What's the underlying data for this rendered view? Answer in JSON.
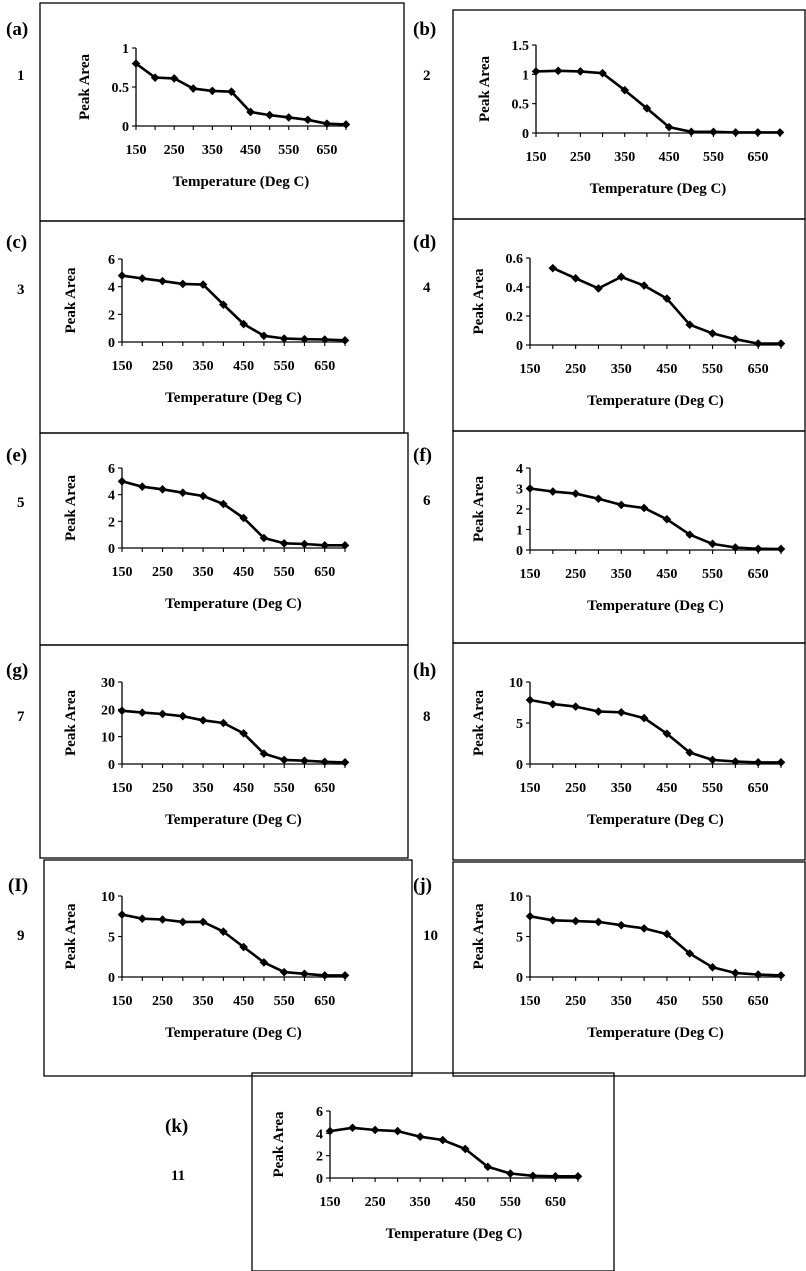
{
  "chart_data": [
    {
      "type": "line",
      "panel_label": "(a)",
      "panel_number": "1",
      "ylabel": "Peak Area",
      "xlabel": "Temperature (Deg C)",
      "x": [
        150,
        200,
        250,
        300,
        350,
        400,
        450,
        500,
        550,
        600,
        650,
        700
      ],
      "values": [
        0.8,
        0.62,
        0.61,
        0.48,
        0.45,
        0.44,
        0.18,
        0.14,
        0.11,
        0.08,
        0.03,
        0.02
      ],
      "ylim": [
        0,
        1
      ],
      "yticks": [
        "0",
        "0.5",
        "1"
      ],
      "yticks_values": [
        0,
        0.5,
        1
      ],
      "xticks": [
        "150",
        "250",
        "350",
        "450",
        "550",
        "650"
      ]
    },
    {
      "type": "line",
      "panel_label": "(b)",
      "panel_number": "2",
      "ylabel": "Peak Area",
      "xlabel": "Temperature (Deg C)",
      "x": [
        150,
        200,
        250,
        300,
        350,
        400,
        450,
        500,
        550,
        600,
        650,
        700
      ],
      "values": [
        1.05,
        1.06,
        1.05,
        1.02,
        0.73,
        0.42,
        0.1,
        0.02,
        0.02,
        0.01,
        0.01,
        0.01
      ],
      "ylim": [
        0,
        1.5
      ],
      "yticks": [
        "0",
        "0.5",
        "1",
        "1.5"
      ],
      "yticks_values": [
        0,
        0.5,
        1,
        1.5
      ],
      "xticks": [
        "150",
        "250",
        "350",
        "450",
        "550",
        "650"
      ]
    },
    {
      "type": "line",
      "panel_label": "(c)",
      "panel_number": "3",
      "ylabel": "Peak Area",
      "xlabel": "Temperature (Deg C)",
      "x": [
        150,
        200,
        250,
        300,
        350,
        400,
        450,
        500,
        550,
        600,
        650,
        700
      ],
      "values": [
        4.8,
        4.6,
        4.4,
        4.2,
        4.15,
        2.7,
        1.3,
        0.45,
        0.25,
        0.2,
        0.18,
        0.12
      ],
      "ylim": [
        0,
        6
      ],
      "yticks": [
        "0",
        "2",
        "4",
        "6"
      ],
      "yticks_values": [
        0,
        2,
        4,
        6
      ],
      "xticks": [
        "150",
        "250",
        "350",
        "450",
        "550",
        "650"
      ]
    },
    {
      "type": "line",
      "panel_label": "(d)",
      "panel_number": "4",
      "ylabel": "Peak Area",
      "xlabel": "Temperature (Deg C)",
      "x": [
        200,
        250,
        300,
        350,
        400,
        450,
        500,
        550,
        600,
        650,
        700
      ],
      "values": [
        0.53,
        0.46,
        0.39,
        0.47,
        0.41,
        0.32,
        0.14,
        0.08,
        0.04,
        0.01,
        0.01
      ],
      "ylim": [
        0,
        0.6
      ],
      "yticks": [
        "0",
        "0.2",
        "0.4",
        "0.6"
      ],
      "yticks_values": [
        0,
        0.2,
        0.4,
        0.6
      ],
      "xticks": [
        "150",
        "250",
        "350",
        "450",
        "550",
        "650"
      ]
    },
    {
      "type": "line",
      "panel_label": "(e)",
      "panel_number": "5",
      "ylabel": "Peak Area",
      "xlabel": "Temperature (Deg C)",
      "x": [
        150,
        200,
        250,
        300,
        350,
        400,
        450,
        500,
        550,
        600,
        650,
        700
      ],
      "values": [
        5.0,
        4.6,
        4.4,
        4.15,
        3.9,
        3.3,
        2.25,
        0.75,
        0.35,
        0.3,
        0.2,
        0.2
      ],
      "ylim": [
        0,
        6
      ],
      "yticks": [
        "0",
        "2",
        "4",
        "6"
      ],
      "yticks_values": [
        0,
        2,
        4,
        6
      ],
      "xticks": [
        "150",
        "250",
        "350",
        "450",
        "550",
        "650"
      ]
    },
    {
      "type": "line",
      "panel_label": "(f)",
      "panel_number": "6",
      "ylabel": "Peak Area",
      "xlabel": "Temperature (Deg C)",
      "x": [
        150,
        200,
        250,
        300,
        350,
        400,
        450,
        500,
        550,
        600,
        650,
        700
      ],
      "values": [
        3.0,
        2.85,
        2.75,
        2.5,
        2.2,
        2.05,
        1.5,
        0.75,
        0.3,
        0.12,
        0.06,
        0.05
      ],
      "ylim": [
        0,
        4
      ],
      "yticks": [
        "0",
        "1",
        "2",
        "3",
        "4"
      ],
      "yticks_values": [
        0,
        1,
        2,
        3,
        4
      ],
      "xticks": [
        "150",
        "250",
        "350",
        "450",
        "550",
        "650"
      ]
    },
    {
      "type": "line",
      "panel_label": "(g)",
      "panel_number": "7",
      "ylabel": "Peak Area",
      "xlabel": "Temperature (Deg C)",
      "x": [
        150,
        200,
        250,
        300,
        350,
        400,
        450,
        500,
        550,
        600,
        650,
        700
      ],
      "values": [
        19.5,
        18.8,
        18.3,
        17.5,
        16.0,
        15.0,
        11.2,
        3.8,
        1.5,
        1.2,
        0.8,
        0.6
      ],
      "ylim": [
        0,
        30
      ],
      "yticks": [
        "0",
        "10",
        "20",
        "30"
      ],
      "yticks_values": [
        0,
        10,
        20,
        30
      ],
      "xticks": [
        "150",
        "250",
        "350",
        "450",
        "550",
        "650"
      ]
    },
    {
      "type": "line",
      "panel_label": "(h)",
      "panel_number": "8",
      "ylabel": "Peak Area",
      "xlabel": "Temperature (Deg C)",
      "x": [
        150,
        200,
        250,
        300,
        350,
        400,
        450,
        500,
        550,
        600,
        650,
        700
      ],
      "values": [
        7.8,
        7.3,
        7.0,
        6.4,
        6.3,
        5.6,
        3.7,
        1.4,
        0.5,
        0.3,
        0.2,
        0.2
      ],
      "ylim": [
        0,
        10
      ],
      "yticks": [
        "0",
        "5",
        "10"
      ],
      "yticks_values": [
        0,
        5,
        10
      ],
      "xticks": [
        "150",
        "250",
        "350",
        "450",
        "550",
        "650"
      ]
    },
    {
      "type": "line",
      "panel_label": "(I)",
      "panel_number": "9",
      "ylabel": "Peak Area",
      "xlabel": "Temperature (Deg C)",
      "x": [
        150,
        200,
        250,
        300,
        350,
        400,
        450,
        500,
        550,
        600,
        650,
        700
      ],
      "values": [
        7.7,
        7.2,
        7.1,
        6.8,
        6.8,
        5.6,
        3.7,
        1.8,
        0.6,
        0.4,
        0.2,
        0.2
      ],
      "ylim": [
        0,
        10
      ],
      "yticks": [
        "0",
        "5",
        "10"
      ],
      "yticks_values": [
        0,
        5,
        10
      ],
      "xticks": [
        "150",
        "250",
        "350",
        "450",
        "550",
        "650"
      ]
    },
    {
      "type": "line",
      "panel_label": "(j)",
      "panel_number": "10",
      "ylabel": "Peak Area",
      "xlabel": "Temperature (Deg C)",
      "x": [
        150,
        200,
        250,
        300,
        350,
        400,
        450,
        500,
        550,
        600,
        650,
        700
      ],
      "values": [
        7.5,
        7.0,
        6.9,
        6.8,
        6.4,
        6.0,
        5.3,
        2.9,
        1.2,
        0.5,
        0.3,
        0.2
      ],
      "ylim": [
        0,
        10
      ],
      "yticks": [
        "0",
        "5",
        "10"
      ],
      "yticks_values": [
        0,
        5,
        10
      ],
      "xticks": [
        "150",
        "250",
        "350",
        "450",
        "550",
        "650"
      ]
    },
    {
      "type": "line",
      "panel_label": "(k)",
      "panel_number": "11",
      "ylabel": "Peak Area",
      "xlabel": "Temperature (Deg C)",
      "x": [
        150,
        200,
        250,
        300,
        350,
        400,
        450,
        500,
        550,
        600,
        650,
        700
      ],
      "values": [
        4.2,
        4.5,
        4.3,
        4.2,
        3.7,
        3.4,
        2.6,
        1.0,
        0.4,
        0.2,
        0.15,
        0.15
      ],
      "ylim": [
        0,
        6
      ],
      "yticks": [
        "0",
        "2",
        "4",
        "6"
      ],
      "yticks_values": [
        0,
        2,
        4,
        6
      ],
      "xticks": [
        "150",
        "250",
        "350",
        "450",
        "550",
        "650"
      ]
    }
  ]
}
